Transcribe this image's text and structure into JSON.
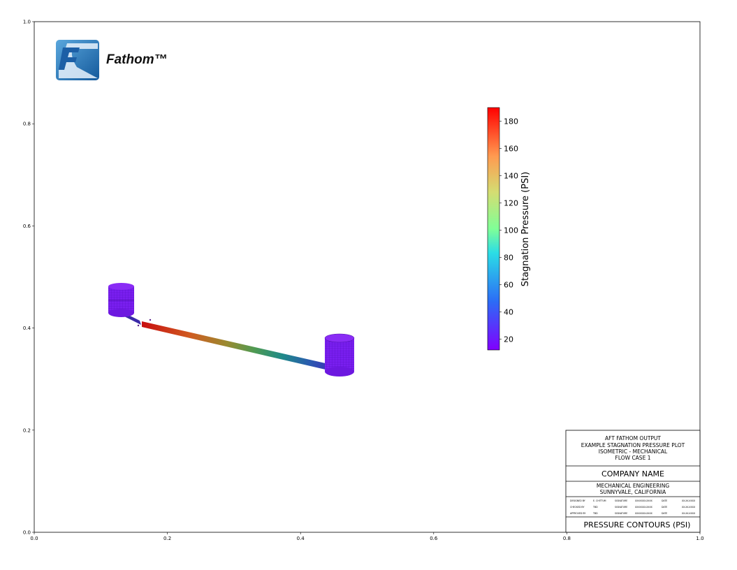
{
  "axes": {
    "x_ticks": [
      "0.0",
      "0.2",
      "0.4",
      "0.6",
      "0.8",
      "1.0"
    ],
    "y_ticks": [
      "0.0",
      "0.2",
      "0.4",
      "0.6",
      "0.8",
      "1.0"
    ],
    "xlim": [
      0,
      1
    ],
    "ylim": [
      0,
      1
    ]
  },
  "logo": {
    "text": "Fathom™",
    "colors": {
      "blue": "#1f6fb5",
      "light": "#dbe8f5"
    }
  },
  "colorbar": {
    "label": "Stagnation Pressure (PSI)",
    "ticks": [
      "20",
      "40",
      "60",
      "80",
      "100",
      "120",
      "140",
      "160",
      "180"
    ],
    "range": [
      12,
      190
    ],
    "colormap": "rainbow"
  },
  "title_block": {
    "header_lines": [
      "AFT FATHOM OUTPUT",
      "EXAMPLE STAGNATION PRESSURE PLOT",
      "ISOMETRIC - MECHANICAL",
      "FLOW CASE 1"
    ],
    "company": "COMPANY NAME",
    "department_lines": [
      "MECHANICAL ENGINEERING",
      "SUNNYVALE, CALIFORNIA"
    ],
    "signoff_rows": [
      [
        "DESIGNED BY",
        "E. CHITTUM",
        "SIGNATURE",
        "XXXXXXX-XXXX",
        "DATE",
        "XX-XX-XXXX"
      ],
      [
        "CHECKED BY",
        "TBD",
        "SIGNATURE",
        "XXXXXXX-XXXX",
        "DATE",
        "XX-XX-XXXX"
      ],
      [
        "APPROVED BY",
        "TBD",
        "SIGNATURE",
        "XXXXXXX-XXXX",
        "DATE",
        "XX-XX-XXXX"
      ]
    ],
    "drawing_title": "PRESSURE CONTOURS (PSI)"
  },
  "model": {
    "pipe_pressure_psi": {
      "start": 185,
      "end": 35
    },
    "tank_pressure_psi": 15,
    "colors": {
      "tank": "#7a1ff0",
      "tank_dark": "#5a10c8"
    }
  }
}
